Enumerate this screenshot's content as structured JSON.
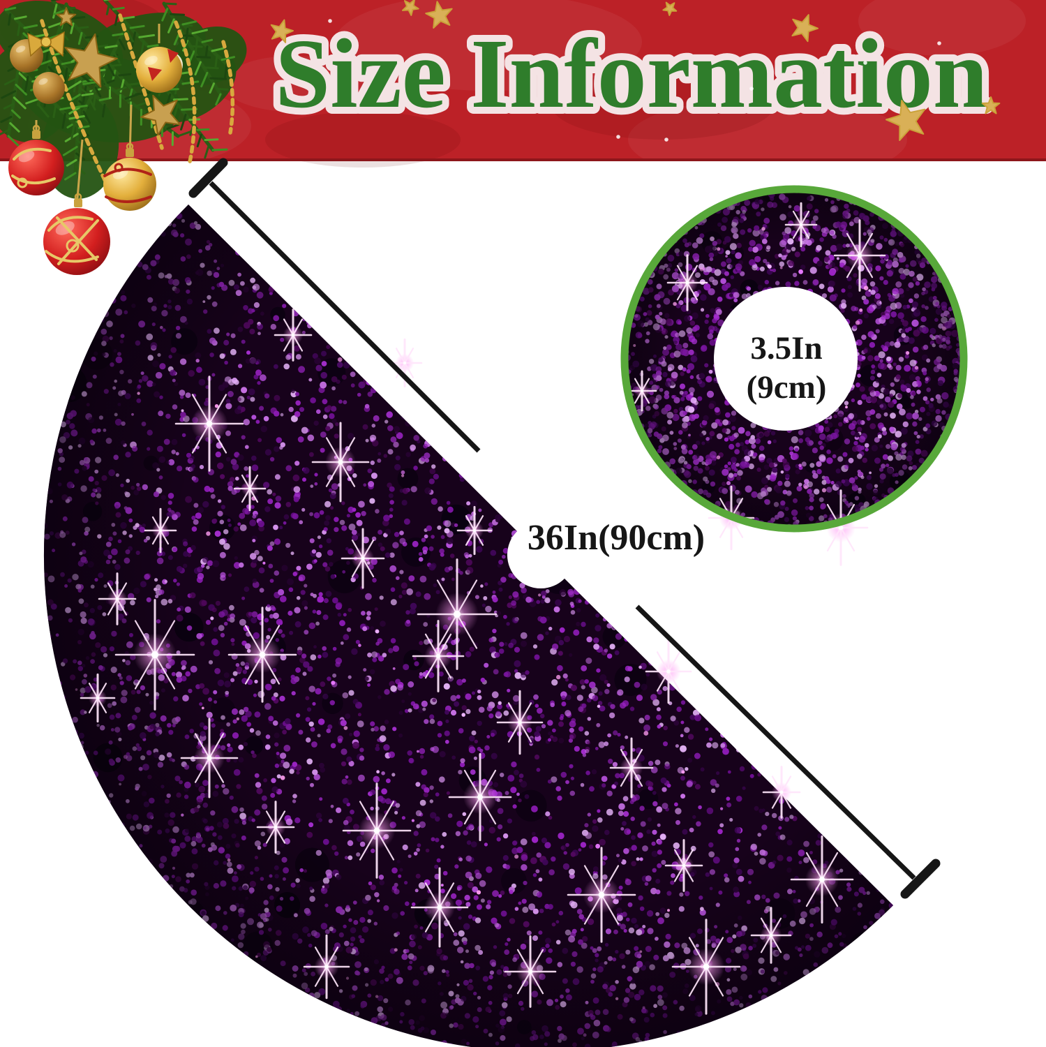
{
  "banner": {
    "title": "Size Information",
    "colors": {
      "background": "#bc2127",
      "bottom_border": "#8d161b",
      "title_fill": "#2f7d2b",
      "title_outline": "#f4e3e4",
      "star_gold": "#d9b057"
    }
  },
  "skirt": {
    "diameter_label": "36In(90cm)",
    "colors": {
      "base": "#17021b",
      "sequins": [
        "#8d1bb5",
        "#a22ecb",
        "#b44fd9",
        "#6e0f92",
        "#c66fe3",
        "#51085e",
        "#d391ea",
        "#7a15a0",
        "#3f0657",
        "#e0aef2",
        "#9b23c4",
        "#2a0336"
      ],
      "bright_accents": [
        "#f0b6ff",
        "#ff9ef2",
        "#e879ff"
      ],
      "dark_patches": "#0a0110",
      "label_text": "#161616",
      "dimension_line": "#161616"
    }
  },
  "inset": {
    "hole_label_line1": "3.5In",
    "hole_label_line2": "(9cm)",
    "colors": {
      "ring": "#58a83a",
      "center": "#ffffff",
      "label_text": "#161616"
    }
  },
  "decorations": {
    "branch_greens": [
      "#3f8f23",
      "#1d4710",
      "#57aa31",
      "#2a5f15"
    ],
    "branch_stem": "#2a5c15",
    "bead_gold": "#d8a93e",
    "star_gold": "#c8a050",
    "star_edge": "#8a6516",
    "bauble_red": "#c3251f",
    "bauble_gold": "#e3af3c",
    "swirl_gold": "#e7c868",
    "swirl_red": "#b02218",
    "string_gold": "#caa64a"
  }
}
